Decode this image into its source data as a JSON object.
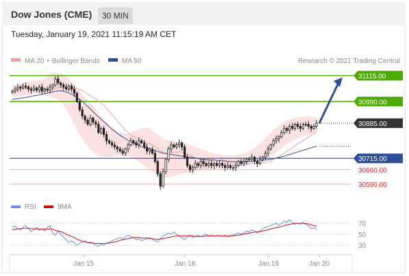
{
  "header": {
    "title": "Dow Jones (CME)",
    "timeframe": "30 MIN",
    "datetime": "Tuesday, January 19, 2021 11:15:19 AM CET"
  },
  "legend": {
    "ma20": "MA 20 + Bollinger Bands",
    "ma50": "MA 50",
    "copyright": "Research © 2021 Trading Central"
  },
  "colors": {
    "green": "#4caa00",
    "blue": "#2d4f9a",
    "red": "#e02020",
    "dark": "#333333",
    "bollinger": "#fcdcdc",
    "ma20": "#f0a0a0",
    "rsi": "#6c8ee6",
    "rsi9": "#cc1111"
  },
  "chart_data": [
    {
      "type": "line",
      "name": "price",
      "ylim": [
        30520,
        31150
      ],
      "x_ticks": [
        "Jan 15",
        "Jan 18",
        "Jan 19",
        "Jan 20"
      ],
      "levels": [
        {
          "value": 31115,
          "label": "31115.00",
          "style": "green-tag"
        },
        {
          "value": 30990,
          "label": "30990.00",
          "style": "green-tag"
        },
        {
          "value": 30885,
          "label": "30885.00",
          "style": "dark-tag"
        },
        {
          "value": 30715,
          "label": "30715.00",
          "style": "blue-tag"
        },
        {
          "value": 30660,
          "label": "30660.00",
          "style": "red-text"
        },
        {
          "value": 30590,
          "label": "30590.00",
          "style": "red-text"
        }
      ],
      "close": [
        31040,
        31050,
        31060,
        31055,
        31065,
        31060,
        31050,
        31045,
        31055,
        31045,
        31060,
        31040,
        31050,
        31045,
        31060,
        31070,
        31100,
        31080,
        31070,
        31060,
        31050,
        31065,
        31050,
        31030,
        30990,
        30950,
        30920,
        30900,
        30880,
        30910,
        30890,
        30880,
        30840,
        30860,
        30830,
        30800,
        30790,
        30780,
        30770,
        30760,
        30750,
        30740,
        30760,
        30780,
        30800,
        30790,
        30780,
        30800,
        30790,
        30770,
        30750,
        30760,
        30740,
        30700,
        30640,
        30580,
        30650,
        30710,
        30760,
        30780,
        30770,
        30780,
        30790,
        30770,
        30720,
        30680,
        30660,
        30670,
        30690,
        30680,
        30700,
        30690,
        30680,
        30690,
        30680,
        30690,
        30680,
        30690,
        30680,
        30670,
        30680,
        30670,
        30670,
        30680,
        30700,
        30690,
        30700,
        30710,
        30710,
        30720,
        30700,
        30690,
        30710,
        30720,
        30740,
        30760,
        30780,
        30800,
        30810,
        30820,
        30840,
        30860,
        30850,
        30870,
        30860,
        30880,
        30870,
        30860,
        30880,
        30880,
        30870,
        30860,
        30870,
        30885
      ],
      "ma50": [
        31000,
        31002,
        31004,
        31006,
        31008,
        31010,
        31012,
        31015,
        31018,
        31020,
        31022,
        31025,
        31028,
        31030,
        31034,
        31036,
        31040,
        31042,
        31042,
        31040,
        31036,
        31032,
        31026,
        31018,
        31010,
        31000,
        30990,
        30978,
        30966,
        30954,
        30940,
        30928,
        30916,
        30904,
        30892,
        30880,
        30868,
        30856,
        30846,
        30836,
        30826,
        30818,
        30810,
        30802,
        30796,
        30790,
        30784,
        30778,
        30772,
        30768,
        30764,
        30760,
        30756,
        30752,
        30748,
        30744,
        30740,
        30738,
        30736,
        30734,
        30732,
        30730,
        30728,
        30726,
        30724,
        30722,
        30720,
        30718,
        30716,
        30714,
        30712,
        30710,
        30709,
        30708,
        30707,
        30706,
        30705,
        30704,
        30703,
        30702,
        30701,
        30700,
        30699,
        30698,
        30697,
        30697,
        30697,
        30698,
        30699,
        30700,
        30701,
        30702,
        30703,
        30705,
        30707,
        30709,
        30711,
        30713,
        30716,
        30719,
        30722,
        30726,
        30730,
        30734,
        30738,
        30742,
        30746,
        30750,
        30754,
        30758,
        30762,
        30766,
        30770,
        30774
      ],
      "bb_upper": [
        31070,
        31072,
        31075,
        31078,
        31080,
        31082,
        31085,
        31088,
        31090,
        31092,
        31094,
        31096,
        31100,
        31110,
        31125,
        31130,
        31130,
        31128,
        31125,
        31120,
        31110,
        31100,
        31085,
        31070,
        31055,
        31040,
        31025,
        31010,
        30995,
        30980,
        30965,
        30950,
        30935,
        30920,
        30905,
        30890,
        30875,
        30865,
        30855,
        30848,
        30842,
        30838,
        30835,
        30835,
        30840,
        30845,
        30850,
        30855,
        30860,
        30862,
        30865,
        30860,
        30850,
        30840,
        30830,
        30820,
        30810,
        30805,
        30802,
        30800,
        30798,
        30796,
        30794,
        30792,
        30790,
        30785,
        30780,
        30775,
        30770,
        30765,
        30760,
        30755,
        30750,
        30745,
        30740,
        30738,
        30736,
        30734,
        30732,
        30730,
        30728,
        30728,
        30728,
        30730,
        30732,
        30736,
        30740,
        30745,
        30750,
        30758,
        30766,
        30776,
        30788,
        30800,
        30812,
        30824,
        30838,
        30852,
        30864,
        30874,
        30884,
        30892,
        30898,
        30904,
        30908,
        30912,
        30914,
        30916,
        30918,
        30918,
        30918,
        30916,
        30914,
        30912
      ],
      "bb_lower": [
        31010,
        31012,
        31014,
        31016,
        31018,
        31020,
        31022,
        31024,
        31026,
        31028,
        31026,
        31024,
        31022,
        31018,
        31014,
        31010,
        31005,
        31000,
        30990,
        30975,
        30955,
        30930,
        30905,
        30880,
        30855,
        30830,
        30810,
        30790,
        30775,
        30760,
        30748,
        30738,
        30730,
        30725,
        30722,
        30720,
        30720,
        30722,
        30725,
        30728,
        30730,
        30730,
        30728,
        30726,
        30722,
        30716,
        30708,
        30700,
        30690,
        30680,
        30670,
        30660,
        30650,
        30640,
        30630,
        30625,
        30620,
        30620,
        30622,
        30625,
        30628,
        30632,
        30636,
        30640,
        30644,
        30646,
        30648,
        30650,
        30652,
        30654,
        30656,
        30658,
        30660,
        30662,
        30664,
        30666,
        30668,
        30670,
        30672,
        30674,
        30676,
        30678,
        30680,
        30682,
        30684,
        30686,
        30688,
        30690,
        30692,
        30694,
        30696,
        30698,
        30702,
        30706,
        30712,
        30718,
        30726,
        30734,
        30744,
        30754,
        30764,
        30774,
        30784,
        30792,
        30800,
        30806,
        30812,
        30818,
        30822,
        30826,
        30830,
        30834,
        30838,
        30842
      ]
    },
    {
      "type": "line",
      "name": "rsi",
      "ylim": [
        20,
        80
      ],
      "y_ticks": [
        70,
        50,
        30
      ],
      "legend": [
        "RSI",
        "9MA"
      ],
      "rsi": [
        62,
        65,
        60,
        58,
        63,
        66,
        60,
        55,
        58,
        62,
        57,
        60,
        56,
        62,
        66,
        52,
        48,
        56,
        50,
        45,
        40,
        35,
        38,
        34,
        30,
        33,
        36,
        38,
        34,
        36,
        33,
        30,
        28,
        32,
        30,
        34,
        36,
        38,
        40,
        42,
        44,
        40,
        45,
        48,
        46,
        44,
        40,
        42,
        38,
        40,
        42,
        44,
        41,
        38,
        36,
        42,
        46,
        50,
        52,
        50,
        54,
        50,
        46,
        44,
        40,
        45,
        48,
        44,
        46,
        48,
        46,
        48,
        50,
        46,
        48,
        46,
        48,
        47,
        46,
        48,
        45,
        47,
        48,
        50,
        52,
        50,
        52,
        56,
        54,
        58,
        56,
        52,
        56,
        60,
        62,
        64,
        66,
        68,
        70,
        66,
        70,
        74,
        72,
        76,
        72,
        68,
        70,
        68,
        72,
        68,
        66,
        60,
        62,
        58
      ],
      "ma9": [
        58,
        59,
        60,
        60,
        61,
        61,
        61,
        60,
        60,
        60,
        59,
        59,
        59,
        59,
        60,
        59,
        57,
        56,
        55,
        53,
        50,
        48,
        46,
        44,
        41,
        39,
        37,
        36,
        35,
        34,
        34,
        33,
        33,
        33,
        33,
        33,
        34,
        35,
        36,
        37,
        39,
        40,
        41,
        42,
        43,
        44,
        44,
        44,
        43,
        43,
        43,
        42,
        42,
        41,
        41,
        41,
        42,
        43,
        44,
        45,
        46,
        47,
        47,
        47,
        47,
        47,
        47,
        47,
        46,
        46,
        46,
        46,
        47,
        47,
        47,
        47,
        47,
        47,
        47,
        47,
        47,
        47,
        47,
        48,
        48,
        49,
        50,
        51,
        52,
        53,
        54,
        54,
        55,
        56,
        57,
        58,
        60,
        61,
        62,
        63,
        64,
        66,
        67,
        68,
        69,
        70,
        70,
        70,
        70,
        69,
        69,
        67,
        66,
        64
      ]
    }
  ]
}
